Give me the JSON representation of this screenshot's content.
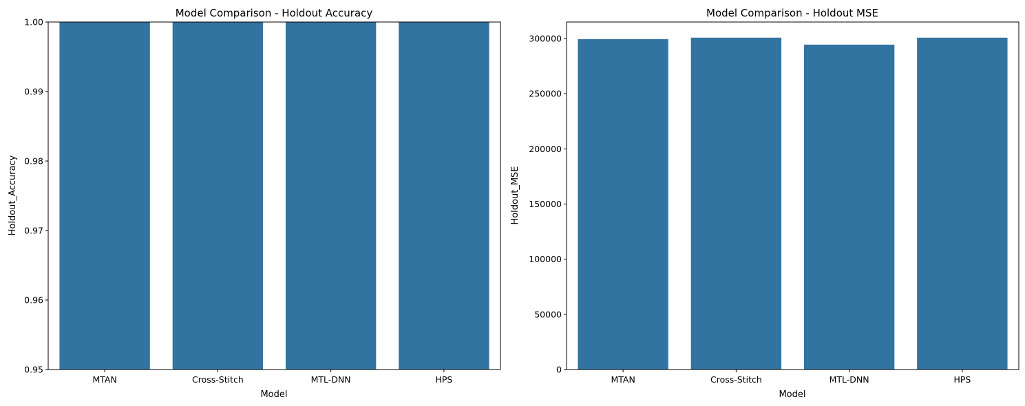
{
  "chart_data": [
    {
      "type": "bar",
      "title": "Model Comparison - Holdout Accuracy",
      "xlabel": "Model",
      "ylabel": "Holdout_Accuracy",
      "categories": [
        "MTAN",
        "Cross-Stitch",
        "MTL-DNN",
        "HPS"
      ],
      "values": [
        1.0,
        1.0,
        1.0,
        1.0
      ],
      "ylim": [
        0.95,
        1.0
      ],
      "yticks": [
        0.95,
        0.96,
        0.97,
        0.98,
        0.99,
        1.0
      ],
      "ytick_labels": [
        "0.95",
        "0.96",
        "0.97",
        "0.98",
        "0.99",
        "1.00"
      ],
      "bar_color": "#3274a1",
      "grid": false,
      "legend": false
    },
    {
      "type": "bar",
      "title": "Model Comparison - Holdout MSE",
      "xlabel": "Model",
      "ylabel": "Holdout_MSE",
      "categories": [
        "MTAN",
        "Cross-Stitch",
        "MTL-DNN",
        "HPS"
      ],
      "values": [
        299500,
        300800,
        294500,
        300800
      ],
      "ylim": [
        0,
        315000
      ],
      "yticks": [
        0,
        50000,
        100000,
        150000,
        200000,
        250000,
        300000
      ],
      "ytick_labels": [
        "0",
        "50000",
        "100000",
        "150000",
        "200000",
        "250000",
        "300000"
      ],
      "bar_color": "#3274a1",
      "grid": false,
      "legend": false
    }
  ]
}
